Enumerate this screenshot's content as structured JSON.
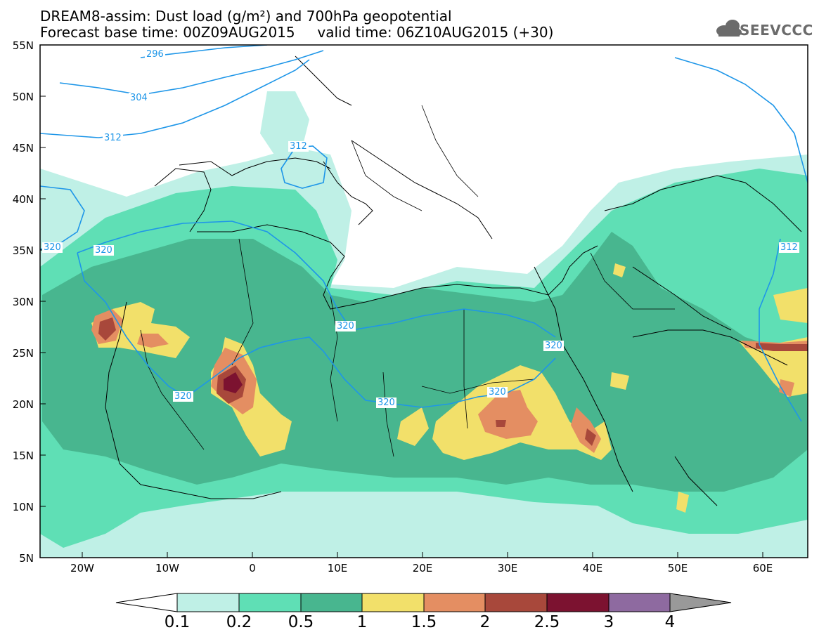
{
  "title": {
    "line1": "DREAM8-assim: Dust load (g/m²) and 700hPa geopotential",
    "line2": "Forecast base time: 00Z09AUG2015     valid time: 06Z10AUG2015 (+30)"
  },
  "logo": {
    "text": "SEEVCCC",
    "icon": "cloud-icon"
  },
  "axes": {
    "lat_labels": [
      "55N",
      "50N",
      "45N",
      "40N",
      "35N",
      "30N",
      "25N",
      "20N",
      "15N",
      "10N",
      "5N"
    ],
    "lon_labels": [
      "20W",
      "10W",
      "0",
      "10E",
      "20E",
      "30E",
      "40E",
      "50E",
      "60E"
    ]
  },
  "contours": {
    "labels": [
      "296",
      "304",
      "312",
      "312",
      "320",
      "320",
      "320",
      "320",
      "320",
      "320",
      "320",
      "312"
    ]
  },
  "colorbar": {
    "levels": [
      "0.1",
      "0.2",
      "0.5",
      "1",
      "1.5",
      "2",
      "2.5",
      "3",
      "4"
    ],
    "colors": [
      "#bff0e6",
      "#5fdfb5",
      "#48b68f",
      "#f2e06a",
      "#e48e62",
      "#a8483b",
      "#7c1230",
      "#8e6aa0",
      "#999999"
    ],
    "under_color": "#ffffff",
    "over_color": "#999999"
  },
  "palette": {
    "c01": "#bff0e6",
    "c02": "#5fdfb5",
    "c05": "#48b68f",
    "c1": "#f2e06a",
    "c15": "#e48e62",
    "c2": "#a8483b",
    "c25": "#7c1230",
    "contour": "#1e96e8"
  }
}
